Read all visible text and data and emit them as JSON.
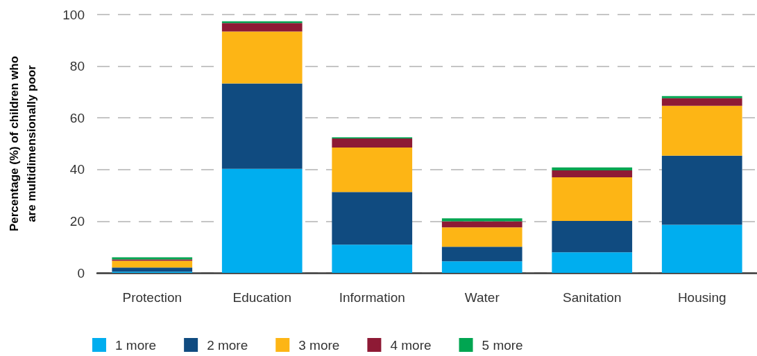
{
  "chart_data": {
    "type": "bar",
    "stacked": true,
    "ylabel": "Percentage (%) of children who\nare multidimensionally poor",
    "categories": [
      "Protection",
      "Education",
      "Information",
      "Water",
      "Sanitation",
      "Housing"
    ],
    "series": [
      {
        "name": "1 more",
        "color": "#00aeef",
        "values": [
          0.5,
          40.3,
          10.9,
          4.5,
          8.0,
          18.6
        ]
      },
      {
        "name": "2 more",
        "color": "#104b80",
        "values": [
          1.6,
          33.0,
          20.4,
          5.6,
          12.1,
          26.8
        ]
      },
      {
        "name": "3 more",
        "color": "#fdb515",
        "values": [
          2.6,
          20.1,
          17.2,
          7.5,
          16.9,
          19.3
        ]
      },
      {
        "name": "4 more",
        "color": "#8e1a35",
        "values": [
          0.5,
          3.3,
          3.5,
          2.4,
          2.7,
          2.9
        ]
      },
      {
        "name": "5 more",
        "color": "#00a551",
        "values": [
          0.8,
          0.7,
          0.5,
          1.1,
          1.1,
          0.8
        ]
      }
    ],
    "ylim": [
      0,
      100
    ],
    "yticks": [
      0,
      20,
      40,
      60,
      80,
      100
    ],
    "grid": "y",
    "legend": "bottom left"
  }
}
